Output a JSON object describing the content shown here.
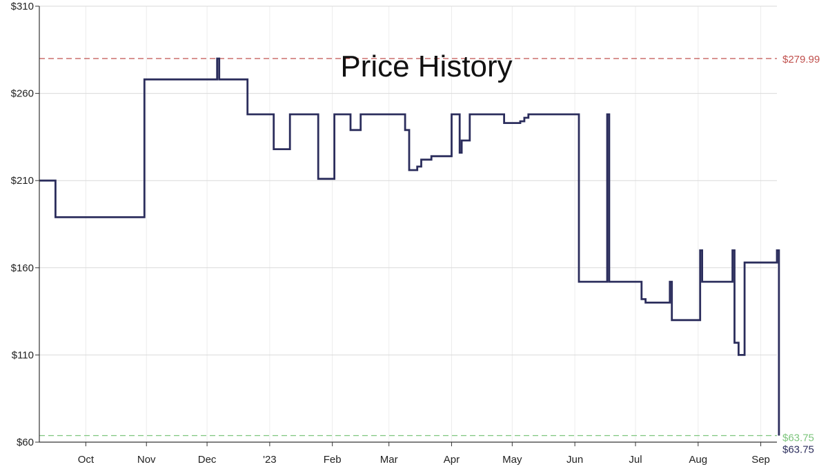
{
  "chart_data": {
    "type": "line",
    "title": "Price History",
    "y_ticks": [
      "$60",
      "$110",
      "$160",
      "$210",
      "$260",
      "$310"
    ],
    "y_tick_values": [
      60,
      110,
      160,
      210,
      260,
      310
    ],
    "ylim": [
      60,
      310
    ],
    "xlim": [
      0,
      365
    ],
    "x_ticks": [
      {
        "label": "Oct",
        "x": 23
      },
      {
        "label": "Nov",
        "x": 53
      },
      {
        "label": "Dec",
        "x": 83
      },
      {
        "label": "'23",
        "x": 114
      },
      {
        "label": "Feb",
        "x": 145
      },
      {
        "label": "Mar",
        "x": 173
      },
      {
        "label": "Apr",
        "x": 204
      },
      {
        "label": "May",
        "x": 234
      },
      {
        "label": "Jun",
        "x": 265
      },
      {
        "label": "Jul",
        "x": 295
      },
      {
        "label": "Aug",
        "x": 326
      },
      {
        "label": "Sep",
        "x": 357
      }
    ],
    "reference_lines": [
      {
        "label": "$279.99",
        "value": 279.99,
        "color": "#c0504d"
      },
      {
        "label": "$63.75",
        "value": 63.75,
        "color": "#7cc47c"
      }
    ],
    "current_price_label": "$63.75",
    "colors": {
      "series": "#2b2d5c",
      "grid": "#d9d9d9"
    },
    "grid": true,
    "series": [
      {
        "color": "#2b2d5c",
        "points": [
          [
            0,
            210
          ],
          [
            8,
            210
          ],
          [
            8,
            189
          ],
          [
            52,
            189
          ],
          [
            52,
            268
          ],
          [
            88,
            268
          ],
          [
            88,
            279.99
          ],
          [
            89,
            279.99
          ],
          [
            89,
            268
          ],
          [
            103,
            268
          ],
          [
            103,
            248
          ],
          [
            116,
            248
          ],
          [
            116,
            228
          ],
          [
            124,
            228
          ],
          [
            124,
            248
          ],
          [
            138,
            248
          ],
          [
            138,
            211
          ],
          [
            146,
            211
          ],
          [
            146,
            248
          ],
          [
            154,
            248
          ],
          [
            154,
            239
          ],
          [
            159,
            239
          ],
          [
            159,
            248
          ],
          [
            181,
            248
          ],
          [
            181,
            239
          ],
          [
            183,
            239
          ],
          [
            183,
            216
          ],
          [
            187,
            216
          ],
          [
            187,
            218
          ],
          [
            189,
            218
          ],
          [
            189,
            222
          ],
          [
            194,
            222
          ],
          [
            194,
            224
          ],
          [
            204,
            224
          ],
          [
            204,
            248
          ],
          [
            208,
            248
          ],
          [
            208,
            226
          ],
          [
            209,
            226
          ],
          [
            209,
            233
          ],
          [
            213,
            233
          ],
          [
            213,
            248
          ],
          [
            230,
            248
          ],
          [
            230,
            243
          ],
          [
            238,
            243
          ],
          [
            238,
            244
          ],
          [
            240,
            244
          ],
          [
            240,
            246
          ],
          [
            242,
            246
          ],
          [
            242,
            248
          ],
          [
            267,
            248
          ],
          [
            267,
            152
          ],
          [
            281,
            152
          ],
          [
            281,
            248
          ],
          [
            282,
            248
          ],
          [
            282,
            152
          ],
          [
            298,
            152
          ],
          [
            298,
            142
          ],
          [
            300,
            142
          ],
          [
            300,
            140
          ],
          [
            312,
            140
          ],
          [
            312,
            152
          ],
          [
            313,
            152
          ],
          [
            313,
            130
          ],
          [
            327,
            130
          ],
          [
            327,
            170
          ],
          [
            328,
            170
          ],
          [
            328,
            152
          ],
          [
            343,
            152
          ],
          [
            343,
            170
          ],
          [
            344,
            170
          ],
          [
            344,
            117
          ],
          [
            346,
            117
          ],
          [
            346,
            110
          ],
          [
            349,
            110
          ],
          [
            349,
            163
          ],
          [
            365,
            163
          ],
          [
            365,
            170
          ],
          [
            366,
            170
          ],
          [
            366,
            63.75
          ]
        ]
      }
    ]
  }
}
